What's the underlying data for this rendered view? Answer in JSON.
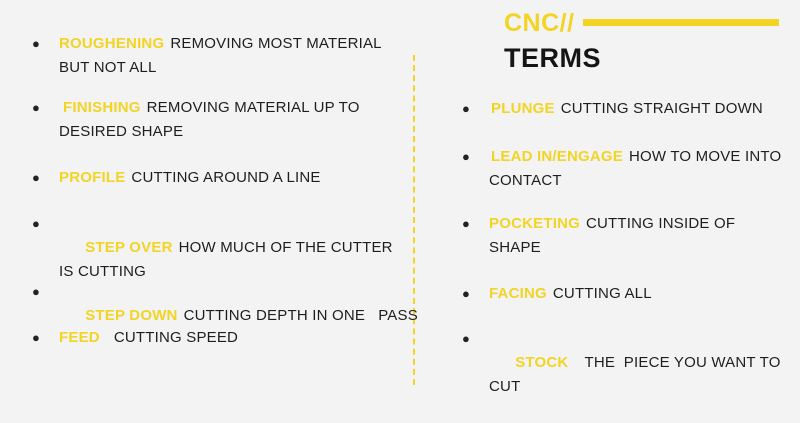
{
  "title": {
    "line1": "CNC//",
    "line2": "TERMS"
  },
  "left_terms": [
    {
      "bullet": "●",
      "name": "ROUGHENING",
      "definition": "REMOVING MOST MATERIAL BUT NOT ALL"
    },
    {
      "bullet": "●",
      "name": "FINISHING",
      "definition": "REMOVING MATERIAL UP TO DESIRED SHAPE"
    },
    {
      "bullet": "●",
      "name": "PROFILE",
      "definition": "CUTTING AROUND A LINE"
    },
    {
      "bullet": "●",
      "name": "STEP OVER",
      "definition": "HOW MUCH OF THE CUTTER   IS CUTTING"
    },
    {
      "bullet": "●",
      "name": "STEP DOWN",
      "definition": "CUTTING DEPTH IN ONE   PASS"
    },
    {
      "bullet": "●",
      "name": "FEED",
      "definition": "CUTTING SPEED"
    }
  ],
  "right_terms": [
    {
      "bullet": "●",
      "name": "PLUNGE",
      "definition": "CUTTING STRAIGHT DOWN"
    },
    {
      "bullet": "●",
      "name": "LEAD IN/ENGAGE",
      "definition": "HOW TO MOVE INTO CONTACT"
    },
    {
      "bullet": "●",
      "name": "POCKETING",
      "definition": "CUTTING INSIDE OF SHAPE"
    },
    {
      "bullet": "●",
      "name": "FACING",
      "definition": "CUTTING ALL"
    },
    {
      "bullet": "●",
      "name": "STOCK",
      "definition": "THE  PIECE YOU WANT TO CUT"
    }
  ],
  "colors": {
    "background": "#f3f3f3",
    "accent": "#f2d424",
    "text": "#1e1e1e"
  }
}
